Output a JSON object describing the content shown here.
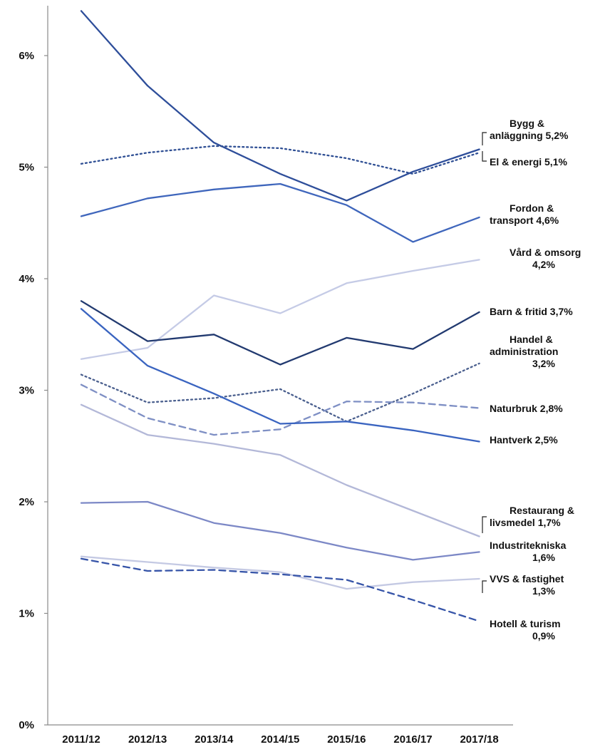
{
  "chart_data": {
    "type": "line",
    "categories": [
      "2011/12",
      "2012/13",
      "2013/14",
      "2014/15",
      "2015/16",
      "2016/17",
      "2017/18"
    ],
    "y_ticks": [
      "0%",
      "1%",
      "2%",
      "3%",
      "4%",
      "5%",
      "6%"
    ],
    "ylim": [
      0,
      6.5
    ],
    "grid": false,
    "legend": "direct labels at right",
    "series": [
      {
        "label_lines": [
          "Bygg &",
          "anläggning 5,2%"
        ],
        "values": [
          6.4,
          5.73,
          5.22,
          4.94,
          4.7,
          4.96,
          5.16
        ],
        "color": "#2e4e9a",
        "dash": "solid",
        "bracket": "top"
      },
      {
        "label_lines": [
          "El & energi 5,1%"
        ],
        "values": [
          5.03,
          5.13,
          5.19,
          5.17,
          5.08,
          4.94,
          5.13
        ],
        "color": "#2f4f94",
        "dash": "dot",
        "bracket": "bottom"
      },
      {
        "label_lines": [
          "Fordon &",
          "transport 4,6%"
        ],
        "values": [
          4.56,
          4.72,
          4.8,
          4.85,
          4.66,
          4.33,
          4.55
        ],
        "color": "#3f66bc",
        "dash": "solid"
      },
      {
        "label_lines": [
          "Vård & omsorg",
          "4,2%"
        ],
        "values": [
          3.28,
          3.38,
          3.85,
          3.69,
          3.96,
          4.07,
          4.17
        ],
        "color": "#c5cbe6",
        "dash": "solid"
      },
      {
        "label_lines": [
          "Barn & fritid 3,7%"
        ],
        "values": [
          3.8,
          3.44,
          3.5,
          3.23,
          3.47,
          3.37,
          3.7
        ],
        "color": "#223a70",
        "dash": "solid"
      },
      {
        "label_lines": [
          "Handel &",
          "administration",
          "3,2%"
        ],
        "values": [
          3.14,
          2.89,
          2.93,
          3.01,
          2.72,
          2.97,
          3.24
        ],
        "color": "#4a5f8e",
        "dash": "dot"
      },
      {
        "label_lines": [
          "Naturbruk 2,8%"
        ],
        "values": [
          3.05,
          2.75,
          2.6,
          2.65,
          2.9,
          2.89,
          2.84
        ],
        "color": "#7e8fc4",
        "dash": "dash"
      },
      {
        "label_lines": [
          "Hantverk 2,5%"
        ],
        "values": [
          3.73,
          3.22,
          2.97,
          2.7,
          2.72,
          2.64,
          2.54
        ],
        "color": "#3a64c0",
        "dash": "solid"
      },
      {
        "label_lines": [
          "Restaurang &",
          "livsmedel 1,7%"
        ],
        "values": [
          2.87,
          2.6,
          2.52,
          2.42,
          2.15,
          1.92,
          1.69
        ],
        "color": "#b3b8d8",
        "dash": "solid",
        "bracket": "restaurang"
      },
      {
        "label_lines": [
          "Industritekniska",
          "1,6%"
        ],
        "values": [
          1.99,
          2.0,
          1.81,
          1.72,
          1.59,
          1.48,
          1.55
        ],
        "color": "#7c88c6",
        "dash": "solid"
      },
      {
        "label_lines": [
          "VVS & fastighet",
          "1,3%"
        ],
        "values": [
          1.51,
          1.46,
          1.41,
          1.37,
          1.22,
          1.28,
          1.31
        ],
        "color": "#c4c9e3",
        "dash": "solid",
        "bracket": "vvs"
      },
      {
        "label_lines": [
          "Hotell & turism",
          "0,9%"
        ],
        "values": [
          1.49,
          1.38,
          1.39,
          1.35,
          1.3,
          1.12,
          0.93
        ],
        "color": "#3654a8",
        "dash": "dash"
      }
    ]
  }
}
